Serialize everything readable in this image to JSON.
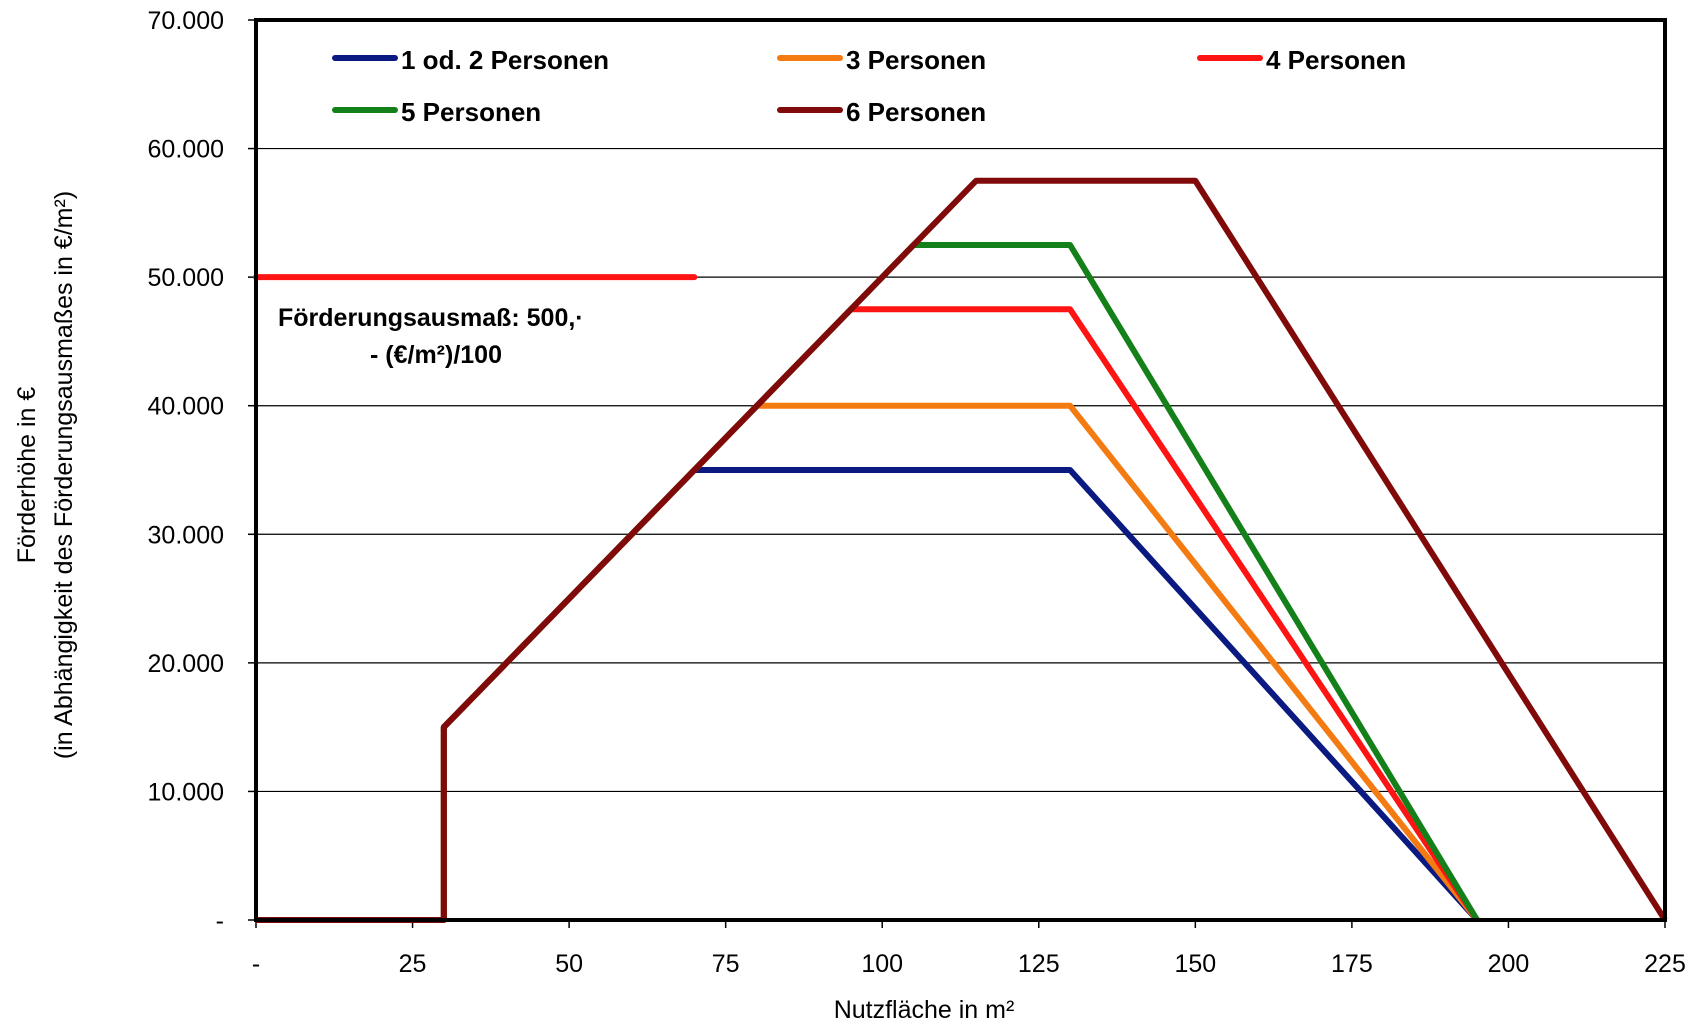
{
  "chart_data": {
    "type": "line",
    "xlabel": "Nutzfläche in m²",
    "ylabel_line1": "Förderhöhe in €",
    "ylabel_line2": "(in Abhängigkeit des Förderungsausmaßes in €/m²)",
    "xlim": [
      0,
      225
    ],
    "ylim": [
      0,
      70000
    ],
    "x_ticks": [
      0,
      25,
      50,
      75,
      100,
      125,
      150,
      175,
      200,
      225
    ],
    "x_tick_labels": [
      "-",
      "25",
      "50",
      "75",
      "100",
      "125",
      "150",
      "175",
      "200",
      "225"
    ],
    "y_ticks": [
      0,
      10000,
      20000,
      30000,
      40000,
      50000,
      60000,
      70000
    ],
    "y_tick_labels": [
      "-",
      "10.000",
      "20.000",
      "30.000",
      "40.000",
      "50.000",
      "60.000",
      "70.000"
    ],
    "grid": "horizontal",
    "legend_position": "top",
    "series": [
      {
        "name": "1 od. 2 Personen",
        "color": "#0b1a80",
        "bold": true,
        "points": [
          [
            0,
            0
          ],
          [
            30,
            0
          ],
          [
            30,
            15000
          ],
          [
            70,
            35000
          ],
          [
            130,
            35000
          ],
          [
            195,
            0
          ]
        ]
      },
      {
        "name": "3 Personen",
        "color": "#f47a12",
        "bold": true,
        "points": [
          [
            0,
            0
          ],
          [
            30,
            0
          ],
          [
            30,
            15000
          ],
          [
            80,
            40000
          ],
          [
            130,
            40000
          ],
          [
            195,
            0
          ]
        ]
      },
      {
        "name": "4 Personen",
        "color": "#ff1414",
        "bold": true,
        "points": [
          [
            0,
            0
          ],
          [
            30,
            0
          ],
          [
            30,
            15000
          ],
          [
            95,
            47500
          ],
          [
            130,
            47500
          ],
          [
            195,
            0
          ]
        ]
      },
      {
        "name": "5 Personen",
        "color": "#14801a",
        "bold": true,
        "points": [
          [
            0,
            0
          ],
          [
            30,
            0
          ],
          [
            30,
            15000
          ],
          [
            105,
            52500
          ],
          [
            130,
            52500
          ],
          [
            195,
            0
          ]
        ]
      },
      {
        "name": "6 Personen",
        "color": "#800a0a",
        "bold": false,
        "points": [
          [
            0,
            0
          ],
          [
            30,
            0
          ],
          [
            30,
            15000
          ],
          [
            115,
            57500
          ],
          [
            150,
            57500
          ],
          [
            225,
            0
          ]
        ]
      }
    ],
    "reference_line": {
      "color": "#ff1414",
      "points": [
        [
          0,
          50000
        ],
        [
          70,
          50000
        ]
      ]
    },
    "annotation": {
      "line1": "Förderungsausmaß: 500,·",
      "line2": "- (€/m²)/100"
    }
  }
}
